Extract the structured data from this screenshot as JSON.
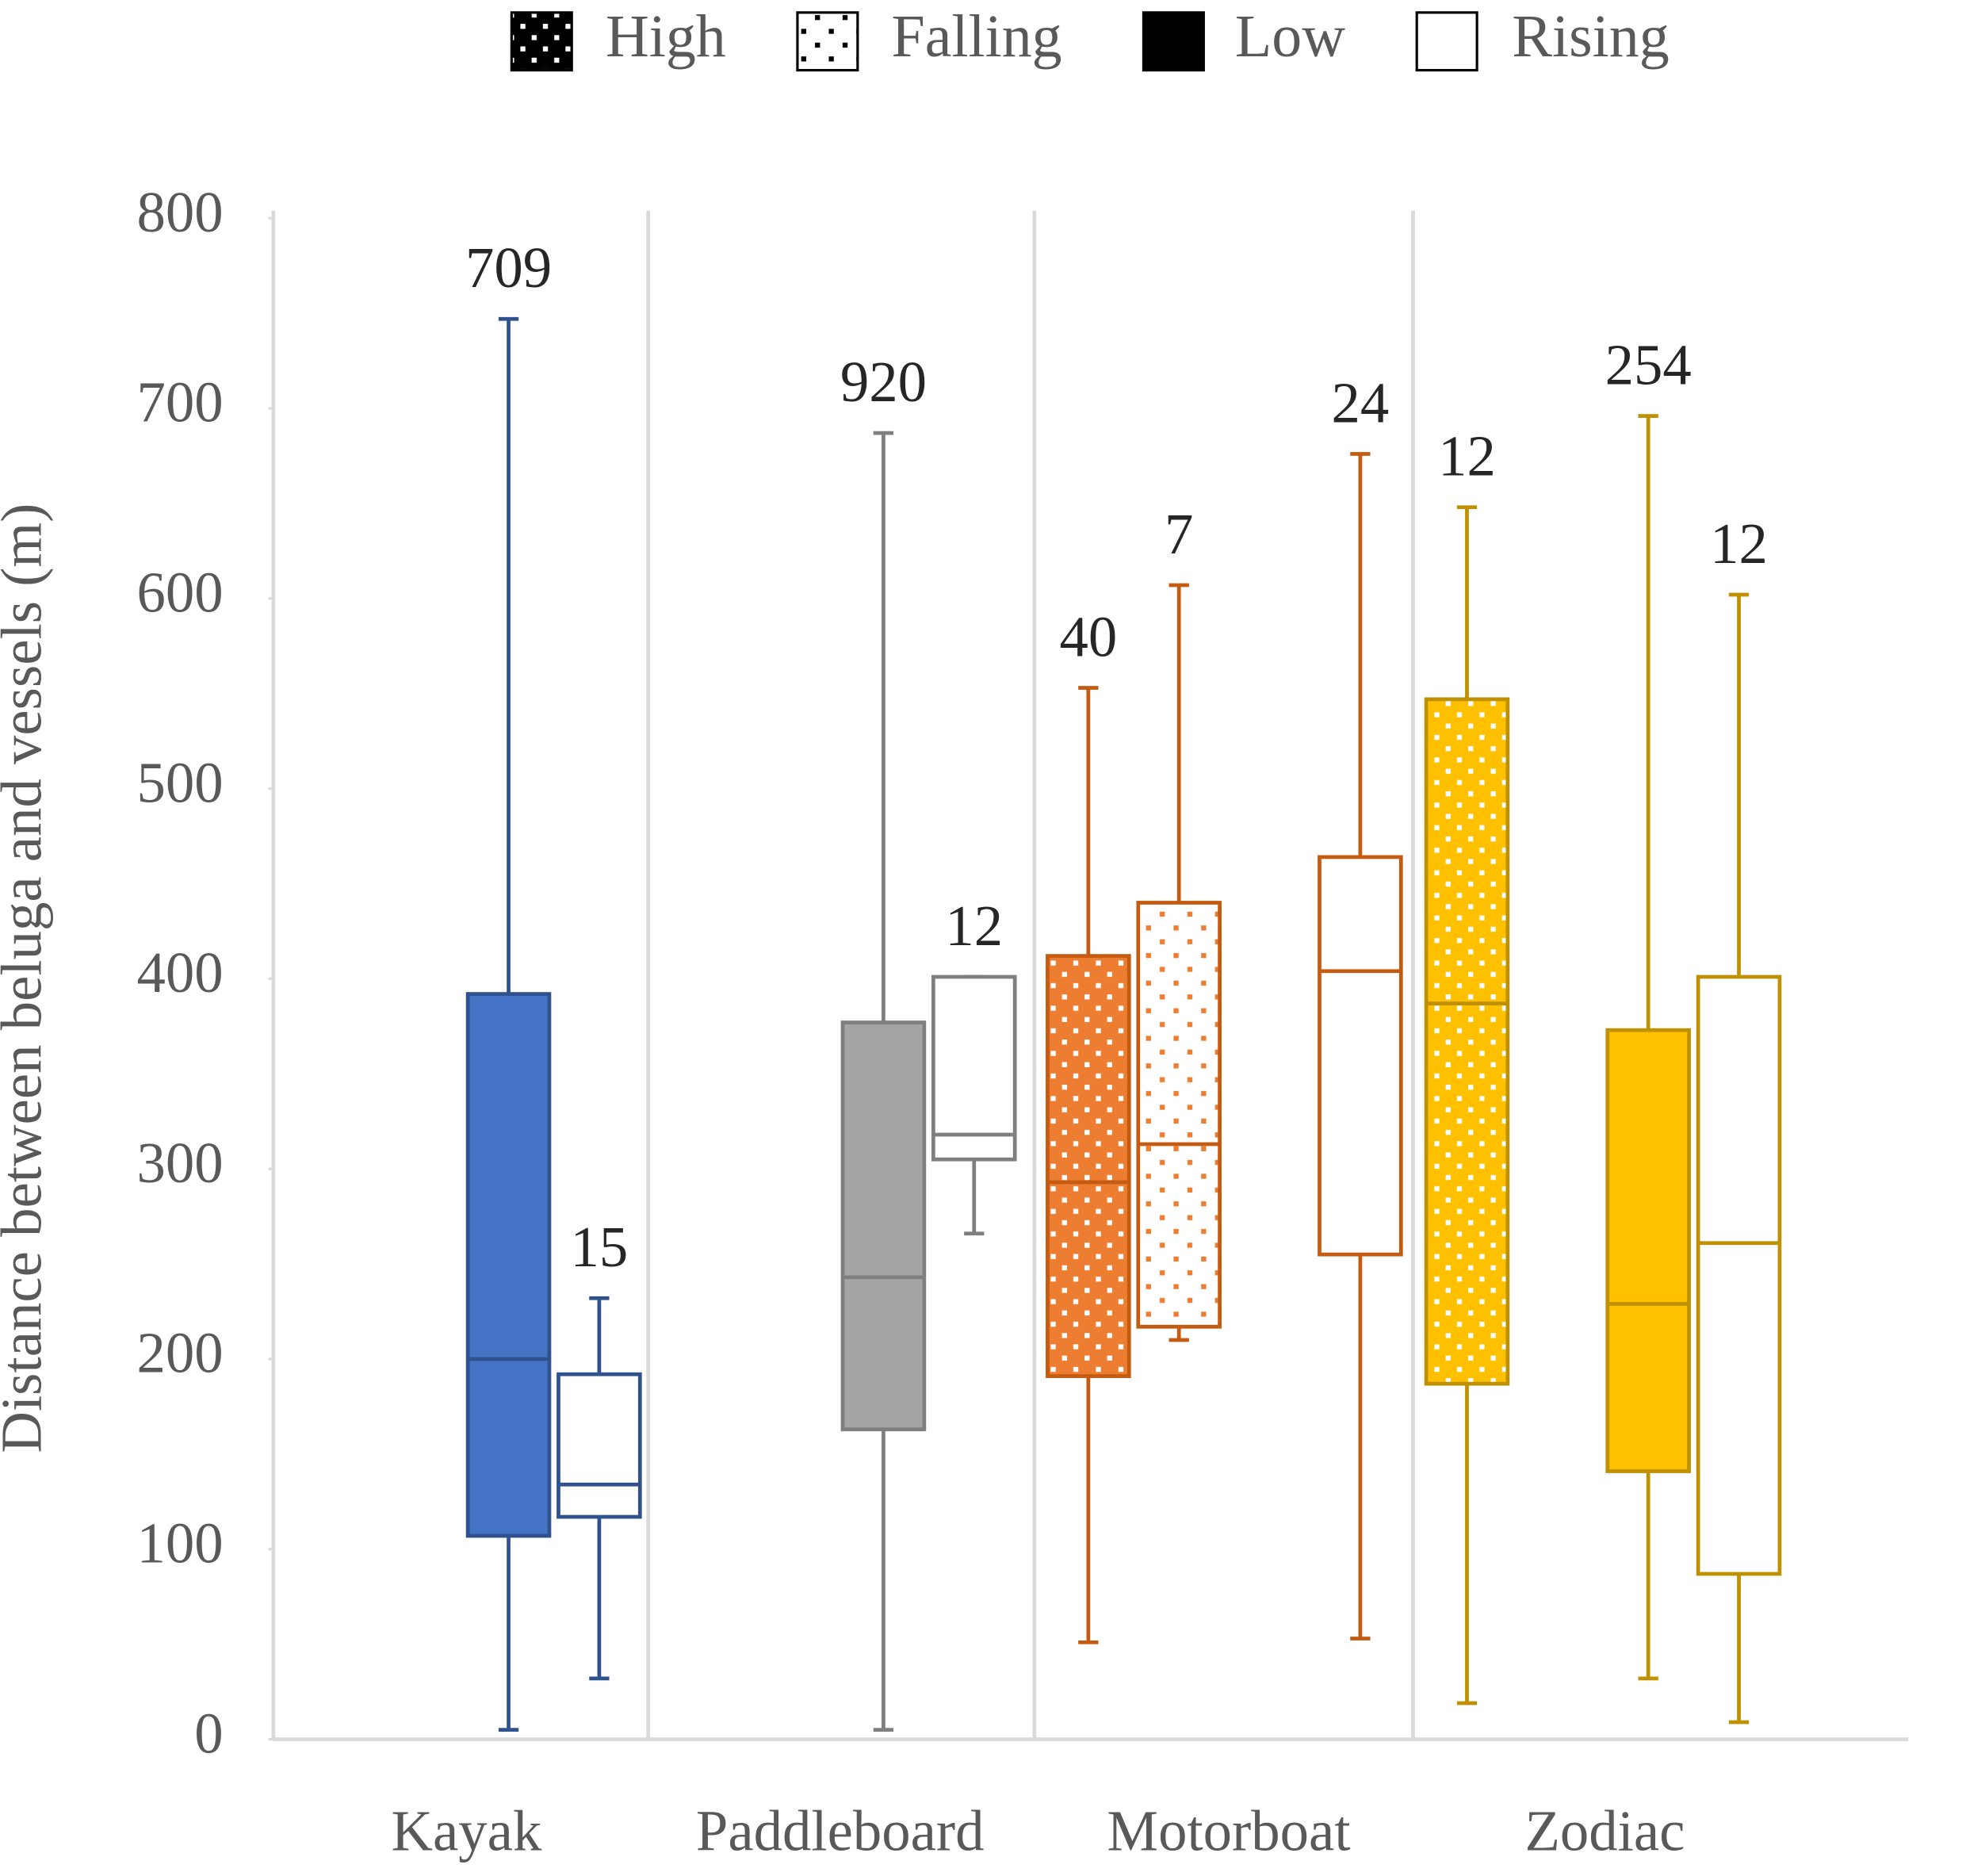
{
  "chart_data": {
    "type": "box",
    "y_axis_label": "Distance between beluga and vessels (m)",
    "legend": [
      "High",
      "Falling",
      "Low",
      "Rising"
    ],
    "categories": [
      "Kayak",
      "Paddleboard",
      "Motorboat",
      "Zodiac"
    ],
    "ylim": [
      0,
      800
    ],
    "yticks": [
      0,
      100,
      200,
      300,
      400,
      500,
      600,
      700,
      800
    ],
    "groups": [
      {
        "name": "Kayak",
        "color": "#4472c4",
        "stroke": "#2f528f",
        "boxes": [
          {
            "condition": "Low",
            "min": 5,
            "q1": 107,
            "median": 200,
            "q3": 392,
            "max": 747,
            "n": 709
          },
          {
            "condition": "Rising",
            "min": 32,
            "q1": 117,
            "median": 134,
            "q3": 192,
            "max": 232,
            "n": 15
          }
        ]
      },
      {
        "name": "Paddleboard",
        "color": "#a5a5a5",
        "stroke": "#7f7f7f",
        "boxes": [
          {
            "condition": "Low",
            "min": 5,
            "q1": 163,
            "median": 243,
            "q3": 377,
            "max": 687,
            "n": 920
          },
          {
            "condition": "Rising",
            "min": 266,
            "q1": 305,
            "median": 318,
            "q3": 401,
            "max": 401,
            "n": 12
          }
        ]
      },
      {
        "name": "Motorboat",
        "color": "#ed7d31",
        "stroke": "#c55a11",
        "boxes": [
          {
            "condition": "High",
            "min": 51,
            "q1": 191,
            "median": 293,
            "q3": 412,
            "max": 553,
            "n": 40
          },
          {
            "condition": "Falling",
            "min": 210,
            "q1": 217,
            "median": 313,
            "q3": 440,
            "max": 607,
            "n": 7
          },
          {
            "condition": "Rising",
            "min": 53,
            "q1": 255,
            "median": 404,
            "q3": 464,
            "max": 676,
            "n": 24
          }
        ]
      },
      {
        "name": "Zodiac",
        "color": "#ffc000",
        "stroke": "#bf9000",
        "boxes": [
          {
            "condition": "High",
            "min": 19,
            "q1": 187,
            "median": 387,
            "q3": 547,
            "max": 648,
            "n": 12
          },
          {
            "condition": "Low",
            "min": 32,
            "q1": 141,
            "median": 229,
            "q3": 373,
            "max": 696,
            "n": 254
          },
          {
            "condition": "Rising",
            "min": 9,
            "q1": 87,
            "median": 261,
            "q3": 401,
            "max": 602,
            "n": 12
          }
        ]
      }
    ]
  }
}
